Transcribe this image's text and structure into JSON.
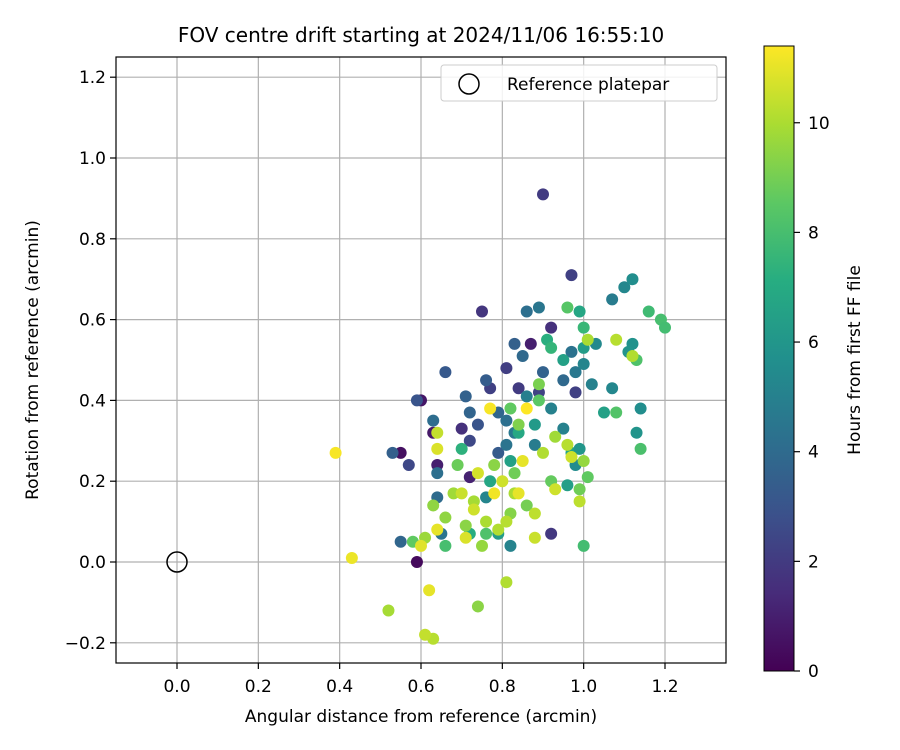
{
  "chart_data": {
    "type": "scatter",
    "title": "FOV centre drift starting at 2024/11/06 16:55:10",
    "xlabel": "Angular distance from reference (arcmin)",
    "ylabel": "Rotation from reference (arcmin)",
    "xlim": [
      -0.15,
      1.35
    ],
    "ylim": [
      -0.25,
      1.25
    ],
    "xticks": [
      0.0,
      0.2,
      0.4,
      0.6,
      0.8,
      1.0,
      1.2
    ],
    "xtick_labels": [
      "0.0",
      "0.2",
      "0.4",
      "0.6",
      "0.8",
      "1.0",
      "1.2"
    ],
    "yticks": [
      -0.2,
      0.0,
      0.2,
      0.4,
      0.6,
      0.8,
      1.0,
      1.2
    ],
    "ytick_labels": [
      "−0.2",
      "0.0",
      "0.2",
      "0.4",
      "0.6",
      "0.8",
      "1.0",
      "1.2"
    ],
    "grid": true,
    "legend": {
      "placement": "top-right",
      "entries": [
        "Reference platepar"
      ]
    },
    "reference_point": {
      "label": "Reference platepar",
      "x": 0.0,
      "y": 0.0
    },
    "colorbar": {
      "label": "Hours from first FF file",
      "cmap": "viridis",
      "range": [
        0,
        11.4
      ],
      "ticks": [
        0,
        2,
        4,
        6,
        8,
        10
      ],
      "tick_labels": [
        "0",
        "2",
        "4",
        "6",
        "8",
        "10"
      ]
    },
    "series": [
      {
        "points": [
          [
            0.9,
            0.91,
            2.0
          ],
          [
            0.59,
            0.0,
            0.3
          ],
          [
            0.55,
            0.27,
            0.5
          ],
          [
            0.6,
            0.4,
            0.7
          ],
          [
            0.63,
            0.32,
            0.8
          ],
          [
            0.64,
            0.24,
            1.0
          ],
          [
            0.72,
            0.21,
            1.1
          ],
          [
            0.87,
            0.54,
            1.0
          ],
          [
            0.92,
            0.58,
            1.6
          ],
          [
            0.92,
            0.07,
            1.9
          ],
          [
            0.75,
            0.62,
            1.8
          ],
          [
            0.7,
            0.33,
            1.6
          ],
          [
            0.81,
            0.48,
            2.1
          ],
          [
            0.89,
            0.42,
            2.3
          ],
          [
            0.97,
            0.71,
            2.2
          ],
          [
            0.98,
            0.42,
            2.2
          ],
          [
            0.84,
            0.43,
            2.0
          ],
          [
            0.77,
            0.43,
            2.2
          ],
          [
            0.59,
            0.4,
            3.0
          ],
          [
            0.72,
            0.3,
            2.5
          ],
          [
            0.57,
            0.24,
            2.5
          ],
          [
            0.53,
            0.27,
            3.5
          ],
          [
            0.55,
            0.05,
            3.8
          ],
          [
            0.66,
            0.47,
            3.2
          ],
          [
            0.71,
            0.41,
            3.6
          ],
          [
            0.74,
            0.34,
            3.0
          ],
          [
            0.79,
            0.27,
            3.3
          ],
          [
            0.76,
            0.45,
            3.4
          ],
          [
            0.79,
            0.37,
            3.8
          ],
          [
            0.83,
            0.54,
            3.5
          ],
          [
            0.85,
            0.51,
            3.9
          ],
          [
            0.86,
            0.62,
            4.2
          ],
          [
            0.89,
            0.63,
            4.5
          ],
          [
            0.9,
            0.47,
            3.6
          ],
          [
            0.95,
            0.45,
            3.9
          ],
          [
            0.97,
            0.52,
            4.3
          ],
          [
            0.64,
            0.22,
            4.2
          ],
          [
            0.63,
            0.35,
            4.1
          ],
          [
            0.72,
            0.37,
            3.7
          ],
          [
            0.81,
            0.35,
            4.2
          ],
          [
            0.83,
            0.32,
            4.6
          ],
          [
            0.86,
            0.41,
            4.9
          ],
          [
            0.88,
            0.29,
            4.8
          ],
          [
            0.92,
            0.38,
            5.0
          ],
          [
            0.98,
            0.47,
            4.6
          ],
          [
            1.0,
            0.49,
            5.2
          ],
          [
            1.02,
            0.44,
            5.0
          ],
          [
            1.07,
            0.65,
            4.8
          ],
          [
            1.1,
            0.68,
            5.3
          ],
          [
            1.12,
            0.7,
            5.6
          ],
          [
            1.03,
            0.54,
            5.4
          ],
          [
            1.12,
            0.54,
            5.8
          ],
          [
            1.11,
            0.52,
            5.9
          ],
          [
            1.07,
            0.43,
            5.3
          ],
          [
            1.13,
            0.32,
            5.9
          ],
          [
            1.14,
            0.38,
            5.6
          ],
          [
            0.76,
            0.16,
            5.2
          ],
          [
            0.81,
            0.29,
            4.4
          ],
          [
            0.82,
            0.04,
            5.1
          ],
          [
            0.65,
            0.07,
            4.4
          ],
          [
            0.64,
            0.16,
            4.0
          ],
          [
            0.95,
            0.33,
            5.0
          ],
          [
            0.98,
            0.24,
            5.5
          ],
          [
            0.88,
            0.34,
            6.2
          ],
          [
            0.95,
            0.5,
            6.5
          ],
          [
            0.99,
            0.62,
            6.8
          ],
          [
            1.0,
            0.53,
            6.3
          ],
          [
            1.05,
            0.37,
            6.5
          ],
          [
            0.97,
            0.27,
            6.7
          ],
          [
            0.96,
            0.19,
            6.4
          ],
          [
            0.99,
            0.28,
            6.0
          ],
          [
            0.82,
            0.25,
            6.5
          ],
          [
            0.84,
            0.32,
            6.9
          ],
          [
            0.77,
            0.2,
            6.8
          ],
          [
            0.79,
            0.07,
            6.3
          ],
          [
            0.72,
            0.07,
            7.1
          ],
          [
            0.7,
            0.28,
            7.3
          ],
          [
            0.91,
            0.55,
            7.2
          ],
          [
            0.92,
            0.53,
            7.5
          ],
          [
            1.0,
            0.58,
            7.6
          ],
          [
            1.16,
            0.62,
            7.8
          ],
          [
            1.19,
            0.6,
            8.0
          ],
          [
            1.2,
            0.58,
            7.9
          ],
          [
            1.13,
            0.5,
            8.2
          ],
          [
            1.14,
            0.28,
            8.1
          ],
          [
            1.08,
            0.37,
            8.3
          ],
          [
            1.0,
            0.04,
            7.9
          ],
          [
            0.96,
            0.63,
            8.4
          ],
          [
            0.89,
            0.4,
            8.5
          ],
          [
            0.82,
            0.38,
            8.6
          ],
          [
            0.76,
            0.07,
            8.2
          ],
          [
            0.66,
            0.04,
            8.0
          ],
          [
            0.58,
            0.05,
            8.6
          ],
          [
            0.69,
            0.24,
            8.8
          ],
          [
            0.83,
            0.22,
            8.9
          ],
          [
            0.86,
            0.14,
            9.0
          ],
          [
            0.92,
            0.2,
            8.7
          ],
          [
            0.99,
            0.18,
            8.9
          ],
          [
            1.01,
            0.21,
            8.6
          ],
          [
            0.89,
            0.44,
            9.1
          ],
          [
            0.84,
            0.34,
            9.2
          ],
          [
            0.82,
            0.12,
            9.3
          ],
          [
            0.78,
            0.24,
            9.4
          ],
          [
            0.75,
            0.04,
            9.6
          ],
          [
            0.71,
            0.09,
            9.4
          ],
          [
            0.66,
            0.11,
            9.5
          ],
          [
            0.61,
            0.06,
            9.7
          ],
          [
            0.63,
            0.14,
            9.5
          ],
          [
            0.68,
            0.17,
            9.8
          ],
          [
            0.73,
            0.15,
            9.9
          ],
          [
            0.76,
            0.1,
            10.0
          ],
          [
            0.79,
            0.08,
            10.1
          ],
          [
            0.81,
            0.1,
            10.2
          ],
          [
            0.83,
            0.17,
            10.0
          ],
          [
            0.88,
            0.12,
            10.3
          ],
          [
            0.9,
            0.27,
            10.1
          ],
          [
            0.93,
            0.31,
            9.8
          ],
          [
            0.96,
            0.29,
            10.2
          ],
          [
            1.0,
            0.25,
            9.6
          ],
          [
            1.01,
            0.55,
            10.0
          ],
          [
            1.08,
            0.55,
            10.2
          ],
          [
            1.12,
            0.51,
            10.1
          ],
          [
            0.52,
            -0.12,
            9.9
          ],
          [
            0.63,
            -0.19,
            10.2
          ],
          [
            0.74,
            -0.11,
            9.4
          ],
          [
            0.81,
            -0.05,
            10.1
          ],
          [
            0.61,
            -0.18,
            10.4
          ],
          [
            0.62,
            -0.07,
            11.0
          ],
          [
            0.39,
            0.27,
            11.3
          ],
          [
            0.43,
            0.01,
            11.1
          ],
          [
            0.6,
            0.04,
            10.9
          ],
          [
            0.64,
            0.08,
            11.0
          ],
          [
            0.71,
            0.06,
            10.8
          ],
          [
            0.77,
            0.38,
            11.3
          ],
          [
            0.86,
            0.38,
            11.4
          ],
          [
            0.85,
            0.25,
            11.0
          ],
          [
            0.8,
            0.2,
            10.6
          ],
          [
            0.74,
            0.22,
            10.7
          ],
          [
            0.7,
            0.17,
            10.5
          ],
          [
            0.64,
            0.32,
            10.4
          ],
          [
            0.64,
            0.28,
            10.8
          ],
          [
            0.78,
            0.17,
            11.2
          ],
          [
            0.84,
            0.17,
            11.0
          ],
          [
            0.93,
            0.18,
            10.6
          ],
          [
            0.97,
            0.26,
            10.6
          ],
          [
            0.99,
            0.15,
            10.3
          ],
          [
            0.88,
            0.06,
            10.5
          ],
          [
            0.73,
            0.13,
            10.6
          ]
        ]
      }
    ]
  }
}
